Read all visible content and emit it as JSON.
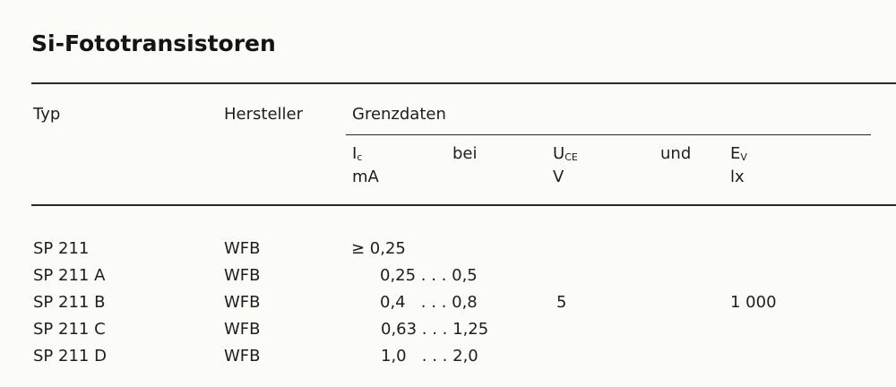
{
  "title": "Si-Fototransistoren",
  "header": {
    "typ": "Typ",
    "hersteller": "Hersteller",
    "grenzdaten": "Grenzdaten",
    "ic": "I",
    "ic_sub": "c",
    "ic_unit": "mA",
    "bei": "bei",
    "uce": "U",
    "uce_sub": "CE",
    "uce_unit": "V",
    "und": "und",
    "ev": "E",
    "ev_sub": "V",
    "ev_unit": "lx"
  },
  "rows": [
    {
      "typ": "SP 211",
      "hersteller": "WFB",
      "ic": "≥ 0,25"
    },
    {
      "typ": "SP 211 A",
      "hersteller": "WFB",
      "ic": "0,25 . . . 0,5"
    },
    {
      "typ": "SP 211 B",
      "hersteller": "WFB",
      "ic": "0,4   . . . 0,8"
    },
    {
      "typ": "SP 211 C",
      "hersteller": "WFB",
      "ic": "0,63 . . . 1,25"
    },
    {
      "typ": "SP 211 D",
      "hersteller": "WFB",
      "ic": "1,0   . . . 2,0"
    }
  ],
  "shared": {
    "uce": "5",
    "ev": "1 000"
  }
}
